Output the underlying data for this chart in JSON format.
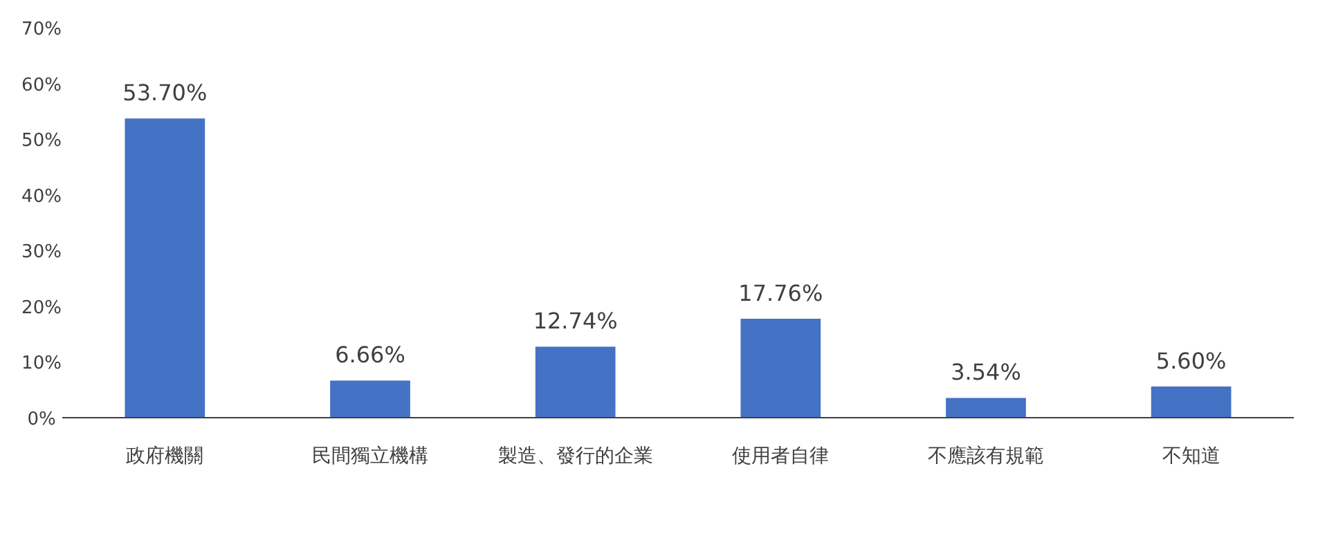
{
  "chart_data": {
    "type": "bar",
    "categories": [
      "政府機關",
      "民間獨立機構",
      "製造、發行的企業",
      "使用者自律",
      "不應該有規範",
      "不知道"
    ],
    "values": [
      53.7,
      6.66,
      12.74,
      17.76,
      3.54,
      5.6
    ],
    "value_labels": [
      "53.70%",
      "6.66%",
      "12.74%",
      "17.76%",
      "3.54%",
      "5.60%"
    ],
    "color": "#4472c4",
    "ylim": [
      0,
      70
    ],
    "yticks": [
      {
        "value": 0,
        "label": "0%"
      },
      {
        "value": 10,
        "label": "10%"
      },
      {
        "value": 20,
        "label": "20%"
      },
      {
        "value": 30,
        "label": "30%"
      },
      {
        "value": 40,
        "label": "40%"
      },
      {
        "value": 50,
        "label": "50%"
      },
      {
        "value": 60,
        "label": "60%"
      },
      {
        "value": 70,
        "label": "70%"
      }
    ],
    "grid": false
  }
}
